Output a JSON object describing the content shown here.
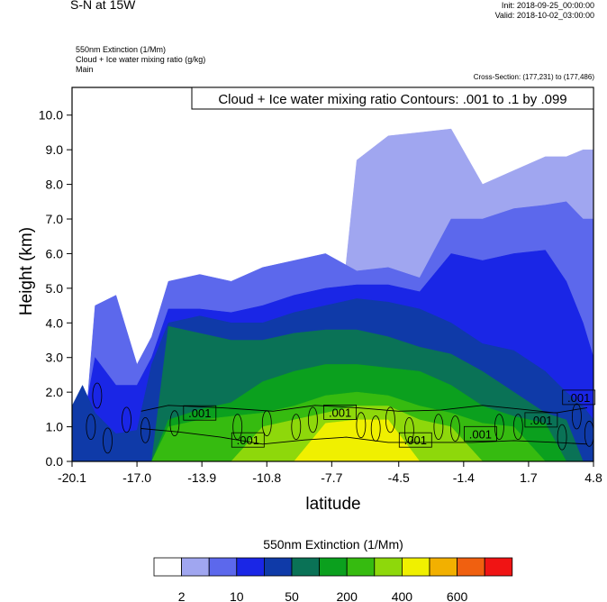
{
  "header": {
    "title": "S-N at 15W",
    "init": "Init: 2018-09-25_00:00:00",
    "valid": "Valid: 2018-10-02_03:00:00",
    "field1": "550nm Extinction   (1/Mm)",
    "field2": "Cloud + Ice water mixing ratio   (g/kg)",
    "field3": "Main",
    "cross_section": "Cross-Section: (177,231) to (177,486)"
  },
  "chart_data": {
    "type": "heatmap",
    "title": "S-N at 15W",
    "xlabel": "latitude",
    "ylabel": "Height (km)",
    "xlim": [
      -20.1,
      4.8
    ],
    "ylim": [
      0.0,
      10.8
    ],
    "x_ticks": [
      -20.1,
      -17.0,
      -13.9,
      -10.8,
      -7.7,
      -4.5,
      -1.4,
      1.7,
      4.8
    ],
    "x_tick_labels": [
      "-20.1",
      "-17.0",
      "-13.9",
      "-10.8",
      "-7.7",
      "-4.5",
      "-1.4",
      "1.7",
      "4.8"
    ],
    "y_ticks": [
      0,
      1,
      2,
      3,
      4,
      5,
      6,
      7,
      8,
      9,
      10
    ],
    "y_tick_labels": [
      "0.0",
      "1.0",
      "2.0",
      "3.0",
      "4.0",
      "5.0",
      "6.0",
      "7.0",
      "8.0",
      "9.0",
      "10.0"
    ],
    "contour_title": "Cloud + Ice water mixing ratio Contours: .001 to .1 by .099",
    "contour_labels": [
      {
        "text": ".001",
        "x": -14.0,
        "y": 1.4
      },
      {
        "text": ".001",
        "x": -11.7,
        "y": 0.62
      },
      {
        "text": ".001",
        "x": -7.3,
        "y": 1.42
      },
      {
        "text": ".001",
        "x": -3.7,
        "y": 0.62
      },
      {
        "text": ".001",
        "x": -0.6,
        "y": 0.8
      },
      {
        "text": ".001",
        "x": 2.3,
        "y": 1.2
      },
      {
        "text": ".001",
        "x": 4.1,
        "y": 1.85
      }
    ],
    "colorbar": {
      "title": "550nm Extinction  (1/Mm)",
      "colors": [
        "#ffffff",
        "#a0a6f0",
        "#5c68ec",
        "#1a26e6",
        "#0f3aa8",
        "#0a7256",
        "#0ba01e",
        "#36bb10",
        "#8ed80b",
        "#f0f000",
        "#f2b000",
        "#f06010",
        "#f01414"
      ],
      "tick_labels": [
        "2",
        "10",
        "50",
        "200",
        "400",
        "600"
      ]
    },
    "levels": [
      0,
      1,
      2,
      3,
      4,
      5,
      6,
      7,
      8,
      9
    ],
    "profile_columns": [
      {
        "x": -20.1,
        "b": [
          11,
          0,
          0,
          1.2,
          1.6,
          0,
          0,
          0,
          0,
          0
        ]
      },
      {
        "x": -19.6,
        "b": [
          11,
          0,
          0,
          1.0,
          2.2,
          0,
          0,
          0,
          0,
          0
        ]
      },
      {
        "x": -19.0,
        "b": [
          11,
          0,
          4.5,
          3.0,
          1.4,
          0,
          0,
          0,
          0,
          0
        ]
      },
      {
        "x": -18.0,
        "b": [
          11,
          0,
          4.8,
          2.2,
          0.8,
          0,
          0,
          0,
          0,
          0
        ]
      },
      {
        "x": -17.0,
        "b": [
          11,
          0,
          2.8,
          2.2,
          0.9,
          0,
          0,
          0,
          0,
          0
        ]
      },
      {
        "x": -16.3,
        "b": [
          11,
          0,
          3.6,
          3.0,
          2.8,
          0,
          0,
          0,
          0,
          0
        ]
      },
      {
        "x": -15.5,
        "b": [
          11,
          0,
          5.2,
          4.4,
          4.0,
          3.9,
          1.2,
          1.0,
          0,
          0
        ]
      },
      {
        "x": -14.0,
        "b": [
          11,
          0,
          5.4,
          4.4,
          4.2,
          3.7,
          1.5,
          1.2,
          0,
          0
        ]
      },
      {
        "x": -12.5,
        "b": [
          11,
          0,
          5.2,
          4.3,
          4.0,
          3.5,
          1.7,
          1.3,
          0,
          0
        ]
      },
      {
        "x": -11.0,
        "b": [
          11,
          0,
          5.6,
          4.5,
          4.0,
          3.5,
          2.3,
          1.4,
          1.0,
          0
        ]
      },
      {
        "x": -9.5,
        "b": [
          11,
          0,
          5.8,
          4.8,
          4.3,
          3.7,
          2.6,
          1.6,
          1.2,
          0
        ]
      },
      {
        "x": -8.0,
        "b": [
          11,
          0,
          6.0,
          5.0,
          4.5,
          3.8,
          2.8,
          1.9,
          1.4,
          1.1
        ]
      },
      {
        "x": -6.5,
        "b": [
          11,
          8.7,
          5.5,
          5.1,
          4.7,
          3.8,
          2.8,
          2.0,
          1.6,
          1.2
        ]
      },
      {
        "x": -5.0,
        "b": [
          11,
          9.4,
          5.6,
          5.1,
          4.6,
          3.6,
          2.7,
          1.9,
          1.6,
          1.2
        ]
      },
      {
        "x": -3.5,
        "b": [
          11,
          9.5,
          5.3,
          4.9,
          4.4,
          3.3,
          2.6,
          1.6,
          1.2,
          0
        ]
      },
      {
        "x": -2.0,
        "b": [
          11,
          9.6,
          7.0,
          6.0,
          4.0,
          3.1,
          2.2,
          1.4,
          1.0,
          0
        ]
      },
      {
        "x": -0.5,
        "b": [
          11,
          8.0,
          7.0,
          5.8,
          3.4,
          2.6,
          1.6,
          1.1,
          0,
          0
        ]
      },
      {
        "x": 1.0,
        "b": [
          11,
          8.4,
          7.3,
          6.0,
          3.2,
          2.0,
          1.3,
          1.0,
          0,
          0
        ]
      },
      {
        "x": 2.5,
        "b": [
          11,
          8.8,
          7.4,
          6.1,
          2.6,
          1.4,
          1.1,
          0,
          0,
          0
        ]
      },
      {
        "x": 3.5,
        "b": [
          11,
          8.8,
          7.5,
          5.2,
          2.0,
          1.2,
          0,
          0,
          0,
          0
        ]
      },
      {
        "x": 4.3,
        "b": [
          11,
          9.0,
          7.0,
          4.0,
          1.6,
          0,
          0,
          0,
          0,
          0
        ]
      },
      {
        "x": 4.8,
        "b": [
          11,
          9.0,
          7.0,
          3.0,
          1.2,
          0,
          0,
          0,
          0,
          0
        ]
      }
    ]
  }
}
